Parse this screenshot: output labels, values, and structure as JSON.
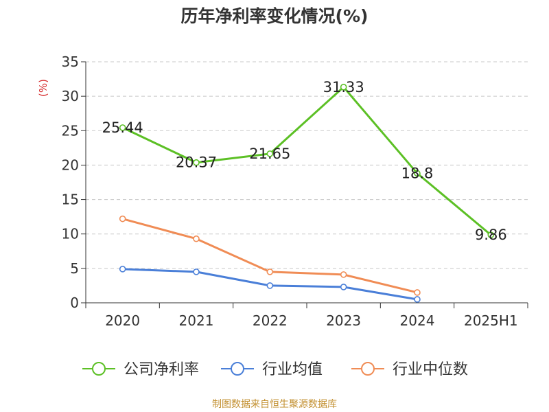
{
  "title": "历年净利率变化情况(%)",
  "source": "制图数据来自恒生聚源数据库",
  "chart_data": {
    "type": "line",
    "title": "历年净利率变化情况(%)",
    "ylabel": "(%)",
    "categories": [
      "2020",
      "2021",
      "2022",
      "2023",
      "2024",
      "2025H1"
    ],
    "ylim": [
      0,
      35
    ],
    "yticks": [
      0,
      5,
      10,
      15,
      20,
      25,
      30,
      35
    ],
    "grid": "horizontal dashed",
    "legend": "bottom",
    "series": [
      {
        "name": "公司净利率",
        "color": "#5cc025",
        "values": [
          25.44,
          20.37,
          21.65,
          31.33,
          18.8,
          9.86
        ],
        "labels": [
          "25.44",
          "20.37",
          "21.65",
          "31.33",
          "18.8",
          "9.86"
        ]
      },
      {
        "name": "行业均值",
        "color": "#4a7fd8",
        "values": [
          4.9,
          4.5,
          2.5,
          2.3,
          0.5,
          null
        ]
      },
      {
        "name": "行业中位数",
        "color": "#f08c55",
        "values": [
          12.2,
          9.3,
          4.5,
          4.1,
          1.5,
          null
        ]
      }
    ]
  }
}
